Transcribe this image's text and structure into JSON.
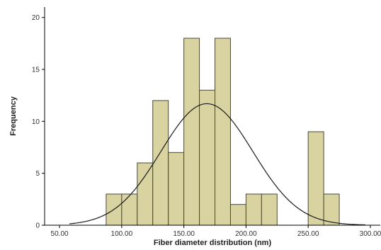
{
  "chart_data": {
    "type": "bar",
    "subtype": "histogram",
    "xlabel": "Fiber diameter distribution (nm)",
    "ylabel": "Frequency",
    "xlim": [
      38,
      308
    ],
    "ylim": [
      0,
      21
    ],
    "x_ticks": [
      50,
      100,
      150,
      200,
      250,
      300
    ],
    "x_tick_labels": [
      "50.00",
      "100.00",
      "150.00",
      "200.00",
      "250.00",
      "300.00"
    ],
    "y_ticks": [
      0,
      5,
      10,
      15,
      20
    ],
    "y_tick_labels": [
      "0",
      "5",
      "10",
      "15",
      "20"
    ],
    "bin_width": 12.5,
    "bins": [
      {
        "start": 87.5,
        "value": 3
      },
      {
        "start": 100,
        "value": 3
      },
      {
        "start": 112.5,
        "value": 6
      },
      {
        "start": 125,
        "value": 12
      },
      {
        "start": 137.5,
        "value": 7
      },
      {
        "start": 150,
        "value": 18
      },
      {
        "start": 162.5,
        "value": 13
      },
      {
        "start": 175,
        "value": 18
      },
      {
        "start": 187.5,
        "value": 2
      },
      {
        "start": 200,
        "value": 3
      },
      {
        "start": 212.5,
        "value": 3
      },
      {
        "start": 250,
        "value": 9
      },
      {
        "start": 262.5,
        "value": 3
      }
    ],
    "normal_curve": {
      "mean": 168.5,
      "std": 37,
      "peak": 11.7
    },
    "grid": false,
    "colors": {
      "bar_fill": "#d8d3a0",
      "bar_stroke": "#4a4a3a",
      "curve": "#1a1a1a",
      "axis": "#000000"
    }
  }
}
